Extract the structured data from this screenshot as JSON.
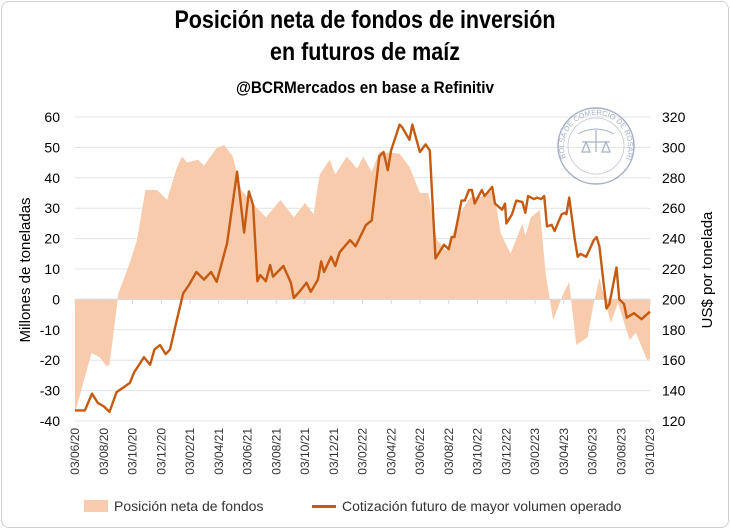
{
  "chart_data": {
    "type": "area+line",
    "title_lines": [
      "Posición neta de fondos de inversión",
      "en futuros de maíz"
    ],
    "subtitle": "@BCRMercados en base a Refinitiv",
    "ylabel_left": "Millones de toneladas",
    "ylabel_right": "US$ por tonelada",
    "ylim_left": [
      -40,
      60
    ],
    "ylim_right": [
      120,
      320
    ],
    "yticks_left": [
      "60",
      "50",
      "40",
      "30",
      "20",
      "10",
      "0",
      "-10",
      "-20",
      "-30",
      "-40"
    ],
    "yticks_right": [
      "320",
      "300",
      "280",
      "260",
      "240",
      "220",
      "200",
      "180",
      "160",
      "140",
      "120"
    ],
    "xticks": [
      "03/06/20",
      "03/08/20",
      "03/10/20",
      "03/12/20",
      "03/02/21",
      "03/04/21",
      "03/06/21",
      "03/08/21",
      "03/10/21",
      "03/12/21",
      "03/02/22",
      "03/04/22",
      "03/06/22",
      "03/08/22",
      "03/10/22",
      "03/12/22",
      "03/02/23",
      "03/04/23",
      "03/06/23",
      "03/08/23",
      "03/10/23"
    ],
    "xrange": [
      "2020-06-03",
      "2023-10-03"
    ],
    "grid": true,
    "legend_position": "bottom",
    "colors": {
      "area": "#f8cbad",
      "line": "#c55a11"
    },
    "series": [
      {
        "name": "Posición neta de fondos",
        "axis": "left",
        "kind": "area",
        "points": [
          [
            "2020-06-03",
            -37.4
          ],
          [
            "2020-07-08",
            -17.6
          ],
          [
            "2020-07-25",
            -19
          ],
          [
            "2020-08-09",
            -22
          ],
          [
            "2020-08-15",
            -21.5
          ],
          [
            "2020-09-03",
            2
          ],
          [
            "2020-09-27",
            12
          ],
          [
            "2020-10-12",
            19.5
          ],
          [
            "2020-10-30",
            36
          ],
          [
            "2020-11-24",
            36
          ],
          [
            "2020-12-15",
            32.7
          ],
          [
            "2021-01-03",
            42.6
          ],
          [
            "2021-01-15",
            47
          ],
          [
            "2021-01-27",
            45
          ],
          [
            "2021-02-18",
            46
          ],
          [
            "2021-03-03",
            44
          ],
          [
            "2021-03-30",
            49.8
          ],
          [
            "2021-04-15",
            50.8
          ],
          [
            "2021-05-03",
            47
          ],
          [
            "2021-05-21",
            36
          ],
          [
            "2021-06-21",
            30.4
          ],
          [
            "2021-07-12",
            27
          ],
          [
            "2021-08-12",
            32.7
          ],
          [
            "2021-09-09",
            27
          ],
          [
            "2021-10-03",
            31.7
          ],
          [
            "2021-10-21",
            28
          ],
          [
            "2021-11-03",
            41
          ],
          [
            "2021-11-24",
            46
          ],
          [
            "2021-12-06",
            41
          ],
          [
            "2021-12-30",
            47
          ],
          [
            "2022-01-21",
            43
          ],
          [
            "2022-02-03",
            47
          ],
          [
            "2022-02-21",
            42
          ],
          [
            "2022-03-09",
            48.5
          ],
          [
            "2022-04-21",
            48
          ],
          [
            "2022-05-12",
            43.6
          ],
          [
            "2022-06-03",
            35
          ],
          [
            "2022-06-21",
            35
          ],
          [
            "2022-07-09",
            19.5
          ],
          [
            "2022-07-30",
            16
          ],
          [
            "2022-08-27",
            28.4
          ],
          [
            "2022-09-18",
            33.7
          ],
          [
            "2022-10-09",
            33.7
          ],
          [
            "2022-11-06",
            36
          ],
          [
            "2022-11-21",
            21.8
          ],
          [
            "2022-12-12",
            15
          ],
          [
            "2023-01-06",
            25
          ],
          [
            "2023-01-12",
            21
          ],
          [
            "2023-01-24",
            27
          ],
          [
            "2023-02-12",
            29.4
          ],
          [
            "2023-02-24",
            8.7
          ],
          [
            "2023-03-12",
            -6.8
          ],
          [
            "2023-04-03",
            2
          ],
          [
            "2023-04-15",
            5.7
          ],
          [
            "2023-04-30",
            -15
          ],
          [
            "2023-05-24",
            -12.4
          ],
          [
            "2023-06-03",
            -3.5
          ],
          [
            "2023-06-18",
            7
          ],
          [
            "2023-07-12",
            -7.8
          ],
          [
            "2023-07-27",
            -1.2
          ],
          [
            "2023-08-21",
            -13.4
          ],
          [
            "2023-09-03",
            -11
          ],
          [
            "2023-09-27",
            -20
          ],
          [
            "2023-10-03",
            -19.5
          ]
        ]
      },
      {
        "name": "Cotización futuro de mayor volumen operado",
        "axis": "right",
        "kind": "line",
        "points": [
          [
            "2020-06-03",
            127
          ],
          [
            "2020-06-24",
            127
          ],
          [
            "2020-07-09",
            138
          ],
          [
            "2020-07-21",
            132
          ],
          [
            "2020-08-03",
            129.6
          ],
          [
            "2020-08-15",
            126
          ],
          [
            "2020-08-30",
            139
          ],
          [
            "2020-09-27",
            145
          ],
          [
            "2020-10-06",
            152
          ],
          [
            "2020-10-27",
            162
          ],
          [
            "2020-11-09",
            157
          ],
          [
            "2020-11-18",
            167
          ],
          [
            "2020-11-30",
            170
          ],
          [
            "2020-12-12",
            164
          ],
          [
            "2020-12-21",
            167
          ],
          [
            "2021-01-03",
            184.5
          ],
          [
            "2021-01-18",
            204
          ],
          [
            "2021-01-30",
            209.5
          ],
          [
            "2021-02-15",
            218
          ],
          [
            "2021-03-03",
            213
          ],
          [
            "2021-03-18",
            218
          ],
          [
            "2021-03-30",
            211.6
          ],
          [
            "2021-04-21",
            237
          ],
          [
            "2021-05-12",
            284
          ],
          [
            "2021-05-27",
            244
          ],
          [
            "2021-06-06",
            271
          ],
          [
            "2021-06-15",
            262
          ],
          [
            "2021-06-24",
            212
          ],
          [
            "2021-06-30",
            216
          ],
          [
            "2021-07-12",
            212
          ],
          [
            "2021-07-21",
            222.6
          ],
          [
            "2021-07-27",
            215
          ],
          [
            "2021-08-18",
            222
          ],
          [
            "2021-09-03",
            211
          ],
          [
            "2021-09-09",
            201
          ],
          [
            "2021-09-21",
            205
          ],
          [
            "2021-10-06",
            211
          ],
          [
            "2021-10-15",
            205
          ],
          [
            "2021-10-30",
            213
          ],
          [
            "2021-11-06",
            225
          ],
          [
            "2021-11-12",
            218
          ],
          [
            "2021-11-27",
            228
          ],
          [
            "2021-12-06",
            222
          ],
          [
            "2021-12-15",
            231
          ],
          [
            "2022-01-06",
            239
          ],
          [
            "2022-01-18",
            235
          ],
          [
            "2022-02-09",
            249
          ],
          [
            "2022-02-21",
            252
          ],
          [
            "2022-03-09",
            294
          ],
          [
            "2022-03-18",
            297
          ],
          [
            "2022-03-27",
            285
          ],
          [
            "2022-04-03",
            298
          ],
          [
            "2022-04-21",
            315
          ],
          [
            "2022-04-27",
            313
          ],
          [
            "2022-05-12",
            305
          ],
          [
            "2022-05-18",
            315
          ],
          [
            "2022-06-03",
            297
          ],
          [
            "2022-06-15",
            302
          ],
          [
            "2022-06-24",
            298
          ],
          [
            "2022-07-06",
            227
          ],
          [
            "2022-07-24",
            236
          ],
          [
            "2022-08-03",
            233
          ],
          [
            "2022-08-09",
            241
          ],
          [
            "2022-08-15",
            241
          ],
          [
            "2022-08-30",
            265
          ],
          [
            "2022-09-06",
            265
          ],
          [
            "2022-09-15",
            272
          ],
          [
            "2022-09-21",
            272
          ],
          [
            "2022-09-27",
            263
          ],
          [
            "2022-10-12",
            272
          ],
          [
            "2022-10-18",
            268
          ],
          [
            "2022-11-03",
            274
          ],
          [
            "2022-11-09",
            263
          ],
          [
            "2022-11-24",
            259
          ],
          [
            "2022-11-30",
            263
          ],
          [
            "2022-12-03",
            250
          ],
          [
            "2022-12-15",
            256
          ],
          [
            "2022-12-24",
            265
          ],
          [
            "2023-01-06",
            264
          ],
          [
            "2023-01-12",
            257
          ],
          [
            "2023-01-18",
            268
          ],
          [
            "2023-01-30",
            266
          ],
          [
            "2023-02-06",
            267
          ],
          [
            "2023-02-15",
            266
          ],
          [
            "2023-02-21",
            268
          ],
          [
            "2023-02-27",
            248
          ],
          [
            "2023-03-09",
            249
          ],
          [
            "2023-03-15",
            245
          ],
          [
            "2023-03-30",
            256
          ],
          [
            "2023-04-06",
            257
          ],
          [
            "2023-04-09",
            256
          ],
          [
            "2023-04-15",
            267
          ],
          [
            "2023-04-27",
            239
          ],
          [
            "2023-05-03",
            228
          ],
          [
            "2023-05-09",
            230
          ],
          [
            "2023-05-21",
            228
          ],
          [
            "2023-06-06",
            239
          ],
          [
            "2023-06-12",
            241
          ],
          [
            "2023-06-18",
            235
          ],
          [
            "2023-07-03",
            194
          ],
          [
            "2023-07-09",
            197
          ],
          [
            "2023-07-24",
            221
          ],
          [
            "2023-07-30",
            200
          ],
          [
            "2023-08-09",
            197
          ],
          [
            "2023-08-15",
            188
          ],
          [
            "2023-08-30",
            191
          ],
          [
            "2023-09-15",
            187
          ],
          [
            "2023-10-03",
            192
          ]
        ]
      }
    ]
  },
  "logo": {
    "text": "BOLSA DE COMERCIO DE ROSARIO"
  }
}
